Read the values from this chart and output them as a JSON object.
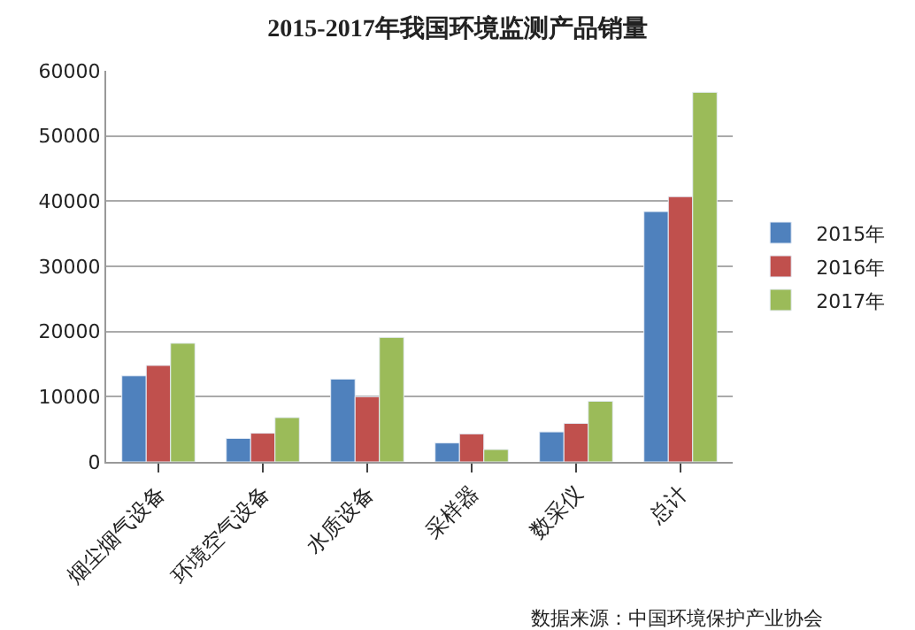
{
  "chart_data": {
    "type": "bar",
    "title": "2015-2017年我国环境监测产品销量",
    "categories": [
      "烟尘烟气设备",
      "环境空气设备",
      "水质设备",
      "采样器",
      "数采仪",
      "总计"
    ],
    "series": [
      {
        "name": "2015年",
        "color": "#4f81bd",
        "values": [
          13200,
          3600,
          12700,
          2900,
          4600,
          38400
        ]
      },
      {
        "name": "2016年",
        "color": "#c0504d",
        "values": [
          14800,
          4400,
          10000,
          4300,
          5900,
          40700
        ]
      },
      {
        "name": "2017年",
        "color": "#9bbb59",
        "values": [
          18200,
          6800,
          19100,
          1900,
          9300,
          56700
        ]
      }
    ],
    "ylim": [
      0,
      60000
    ],
    "yticks": [
      0,
      10000,
      20000,
      30000,
      40000,
      50000,
      60000
    ],
    "grid": "y",
    "legend": "right",
    "annotations": [
      "数据来源：中国环境保护产业协会"
    ]
  }
}
